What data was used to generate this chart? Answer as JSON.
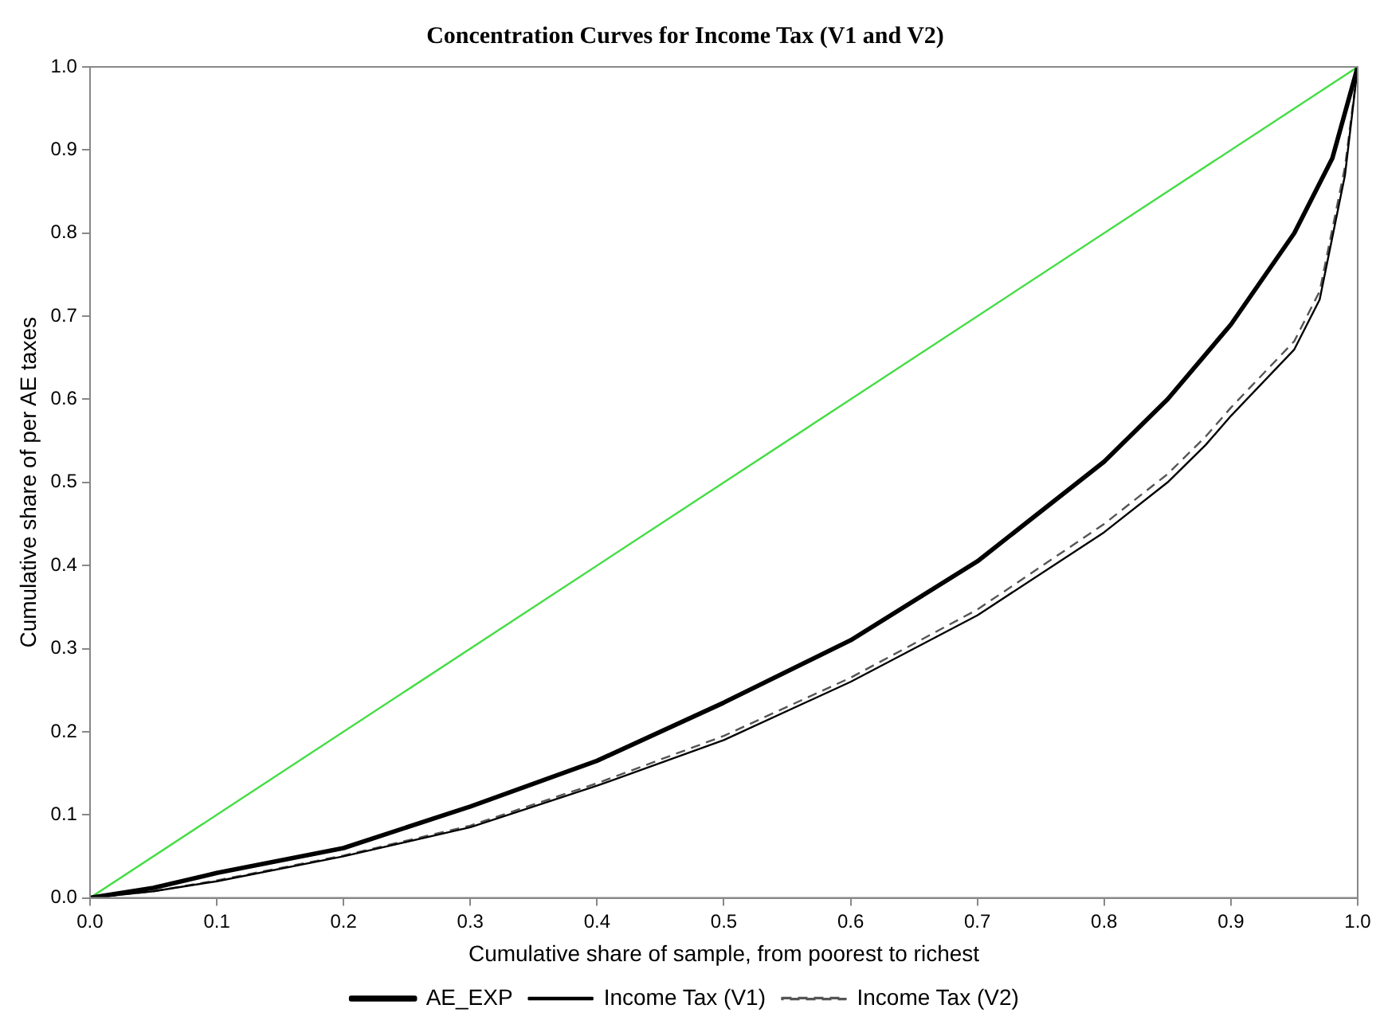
{
  "chart_data": {
    "type": "line",
    "title": "Concentration Curves for Income Tax (V1 and V2)",
    "xlabel": "Cumulative share of sample, from poorest to richest",
    "ylabel": "Cumulative share of per AE taxes",
    "xlim": [
      0,
      1
    ],
    "ylim": [
      0,
      1
    ],
    "xticks": [
      {
        "value": 0,
        "label": "0.0"
      },
      0.1,
      0.2,
      0.3,
      0.4,
      0.5,
      0.6,
      0.7,
      0.8,
      0.9,
      {
        "value": 1,
        "label": "1.0"
      }
    ],
    "yticks": [
      {
        "value": 0,
        "label": "0.0"
      },
      0.1,
      0.2,
      0.3,
      0.4,
      0.5,
      0.6,
      0.7,
      0.8,
      0.9,
      {
        "value": 1,
        "label": "1.0"
      }
    ],
    "grid": false,
    "legend": "bottom",
    "marker": "none",
    "series": [
      {
        "name": "AE_EXP",
        "color": "#000000",
        "line_style": "solid",
        "x": [
          0,
          0.05,
          0.1,
          0.2,
          0.3,
          0.4,
          0.5,
          0.6,
          0.7,
          0.8,
          0.85,
          0.9,
          0.95,
          0.98,
          1
        ],
        "values": [
          0,
          0.012,
          0.03,
          0.06,
          0.11,
          0.165,
          0.235,
          0.31,
          0.405,
          0.525,
          0.6,
          0.69,
          0.8,
          0.89,
          1
        ]
      },
      {
        "name": "Income Tax (V1)",
        "color": "#000000",
        "line_style": "solid",
        "x": [
          0,
          0.05,
          0.1,
          0.2,
          0.3,
          0.4,
          0.5,
          0.6,
          0.7,
          0.8,
          0.85,
          0.88,
          0.9,
          0.95,
          0.97,
          0.99,
          1
        ],
        "values": [
          0,
          0.008,
          0.02,
          0.05,
          0.085,
          0.135,
          0.19,
          0.26,
          0.34,
          0.44,
          0.5,
          0.545,
          0.58,
          0.66,
          0.72,
          0.87,
          1
        ]
      },
      {
        "name": "Income Tax (V2)",
        "color": "#555555",
        "line_style": "dashed",
        "x": [
          0,
          0.05,
          0.1,
          0.2,
          0.3,
          0.4,
          0.5,
          0.6,
          0.7,
          0.8,
          0.85,
          0.88,
          0.9,
          0.95,
          0.97,
          0.99,
          1
        ],
        "values": [
          0,
          0.008,
          0.021,
          0.051,
          0.087,
          0.138,
          0.195,
          0.265,
          0.347,
          0.45,
          0.51,
          0.555,
          0.59,
          0.67,
          0.73,
          0.88,
          1
        ]
      },
      {
        "color": "#44dd44",
        "line_style": "solid",
        "x": [
          0,
          1
        ],
        "values": [
          0,
          1
        ]
      }
    ]
  }
}
